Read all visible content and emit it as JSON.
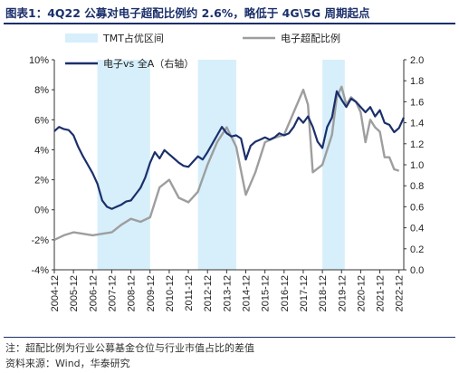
{
  "header": {
    "title": "图表1：4Q22 公募对电子超配比例约 2.6%，略低于 4G\\5G 周期起点"
  },
  "footer": {
    "note": "注：超配比例为行业公募基金仓位与行业市值占比的差值",
    "source": "资料来源：Wind，华泰研究"
  },
  "colors": {
    "shade": "#d6effb",
    "overweight_line": "#9e9e9e",
    "relative_line": "#1b2f6b",
    "axis": "#333333"
  },
  "chart_data": {
    "type": "line",
    "title": "",
    "xlabel": "",
    "ylabel_left": "",
    "ylabel_right": "",
    "x_ticks": [
      "2004-12",
      "2005-12",
      "2006-12",
      "2007-12",
      "2008-12",
      "2009-12",
      "2010-12",
      "2011-12",
      "2012-12",
      "2013-12",
      "2014-12",
      "2015-12",
      "2016-12",
      "2017-12",
      "2018-12",
      "2019-12",
      "2020-12",
      "2021-12",
      "2022-12"
    ],
    "x_range": [
      "2004-12",
      "2023-03"
    ],
    "ylim_left": [
      -4,
      10
    ],
    "y_ticks_left": [
      "-4%",
      "-2%",
      "0%",
      "2%",
      "4%",
      "6%",
      "8%",
      "10%"
    ],
    "ylim_right": [
      0.0,
      2.0
    ],
    "y_ticks_right": [
      "0.0",
      "0.2",
      "0.4",
      "0.6",
      "0.8",
      "1.0",
      "1.2",
      "1.4",
      "1.6",
      "1.8",
      "2.0"
    ],
    "shaded_periods_label": "TMT占优区间",
    "shaded_periods": [
      [
        "2007-03",
        "2009-12"
      ],
      [
        "2012-06",
        "2014-06"
      ],
      [
        "2018-12",
        "2020-02"
      ]
    ],
    "legend_placement": "top",
    "series": [
      {
        "name": "电子超配比例",
        "axis": "left",
        "unit": "%",
        "points": [
          [
            "2004-12",
            -2.0
          ],
          [
            "2005-06",
            -1.7
          ],
          [
            "2005-12",
            -1.5
          ],
          [
            "2006-06",
            -1.6
          ],
          [
            "2006-12",
            -1.7
          ],
          [
            "2007-06",
            -1.6
          ],
          [
            "2007-12",
            -1.5
          ],
          [
            "2008-06",
            -1.0
          ],
          [
            "2008-12",
            -0.6
          ],
          [
            "2009-06",
            -0.8
          ],
          [
            "2009-12",
            -0.5
          ],
          [
            "2010-06",
            1.5
          ],
          [
            "2010-12",
            2.0
          ],
          [
            "2011-06",
            0.8
          ],
          [
            "2011-12",
            0.5
          ],
          [
            "2012-06",
            1.2
          ],
          [
            "2012-12",
            3.0
          ],
          [
            "2013-06",
            4.5
          ],
          [
            "2013-12",
            5.5
          ],
          [
            "2014-06",
            4.2
          ],
          [
            "2014-12",
            1.0
          ],
          [
            "2015-06",
            2.5
          ],
          [
            "2015-12",
            4.5
          ],
          [
            "2016-06",
            4.8
          ],
          [
            "2016-12",
            5.0
          ],
          [
            "2017-06",
            6.5
          ],
          [
            "2017-12",
            8.0
          ],
          [
            "2018-03",
            7.0
          ],
          [
            "2018-06",
            2.5
          ],
          [
            "2018-12",
            3.0
          ],
          [
            "2019-06",
            5.0
          ],
          [
            "2019-09",
            7.5
          ],
          [
            "2019-12",
            8.2
          ],
          [
            "2020-03",
            7.0
          ],
          [
            "2020-06",
            7.5
          ],
          [
            "2020-09",
            7.2
          ],
          [
            "2020-12",
            6.5
          ],
          [
            "2021-03",
            4.5
          ],
          [
            "2021-06",
            6.0
          ],
          [
            "2021-09",
            5.5
          ],
          [
            "2021-12",
            5.2
          ],
          [
            "2022-03",
            3.5
          ],
          [
            "2022-06",
            3.5
          ],
          [
            "2022-09",
            2.7
          ],
          [
            "2022-12",
            2.6
          ]
        ]
      },
      {
        "name": "电子vs 全A（右轴）",
        "axis": "right",
        "points": [
          [
            "2004-12",
            1.32
          ],
          [
            "2005-03",
            1.36
          ],
          [
            "2005-06",
            1.34
          ],
          [
            "2005-09",
            1.33
          ],
          [
            "2005-12",
            1.28
          ],
          [
            "2006-03",
            1.17
          ],
          [
            "2006-06",
            1.08
          ],
          [
            "2006-09",
            1.0
          ],
          [
            "2006-12",
            0.92
          ],
          [
            "2007-03",
            0.82
          ],
          [
            "2007-06",
            0.66
          ],
          [
            "2007-09",
            0.6
          ],
          [
            "2007-12",
            0.58
          ],
          [
            "2008-03",
            0.6
          ],
          [
            "2008-06",
            0.62
          ],
          [
            "2008-09",
            0.65
          ],
          [
            "2008-12",
            0.66
          ],
          [
            "2009-03",
            0.72
          ],
          [
            "2009-06",
            0.78
          ],
          [
            "2009-09",
            0.88
          ],
          [
            "2009-12",
            1.02
          ],
          [
            "2010-03",
            1.12
          ],
          [
            "2010-06",
            1.06
          ],
          [
            "2010-09",
            1.14
          ],
          [
            "2010-12",
            1.1
          ],
          [
            "2011-03",
            1.06
          ],
          [
            "2011-06",
            1.02
          ],
          [
            "2011-09",
            0.99
          ],
          [
            "2011-12",
            0.98
          ],
          [
            "2012-03",
            1.03
          ],
          [
            "2012-06",
            1.08
          ],
          [
            "2012-09",
            1.05
          ],
          [
            "2012-12",
            1.12
          ],
          [
            "2013-03",
            1.2
          ],
          [
            "2013-06",
            1.28
          ],
          [
            "2013-09",
            1.36
          ],
          [
            "2013-12",
            1.3
          ],
          [
            "2014-03",
            1.27
          ],
          [
            "2014-06",
            1.28
          ],
          [
            "2014-09",
            1.25
          ],
          [
            "2014-12",
            1.05
          ],
          [
            "2015-03",
            1.18
          ],
          [
            "2015-06",
            1.22
          ],
          [
            "2015-09",
            1.24
          ],
          [
            "2015-12",
            1.26
          ],
          [
            "2016-03",
            1.24
          ],
          [
            "2016-06",
            1.26
          ],
          [
            "2016-09",
            1.3
          ],
          [
            "2016-12",
            1.28
          ],
          [
            "2017-03",
            1.3
          ],
          [
            "2017-06",
            1.36
          ],
          [
            "2017-09",
            1.45
          ],
          [
            "2017-12",
            1.4
          ],
          [
            "2018-03",
            1.46
          ],
          [
            "2018-06",
            1.36
          ],
          [
            "2018-09",
            1.22
          ],
          [
            "2018-12",
            1.16
          ],
          [
            "2019-03",
            1.36
          ],
          [
            "2019-06",
            1.45
          ],
          [
            "2019-09",
            1.7
          ],
          [
            "2019-12",
            1.62
          ],
          [
            "2020-03",
            1.55
          ],
          [
            "2020-06",
            1.63
          ],
          [
            "2020-09",
            1.6
          ],
          [
            "2020-12",
            1.55
          ],
          [
            "2021-03",
            1.5
          ],
          [
            "2021-06",
            1.55
          ],
          [
            "2021-09",
            1.46
          ],
          [
            "2021-12",
            1.52
          ],
          [
            "2022-03",
            1.4
          ],
          [
            "2022-06",
            1.38
          ],
          [
            "2022-09",
            1.31
          ],
          [
            "2022-12",
            1.35
          ],
          [
            "2023-03",
            1.45
          ]
        ]
      }
    ]
  }
}
